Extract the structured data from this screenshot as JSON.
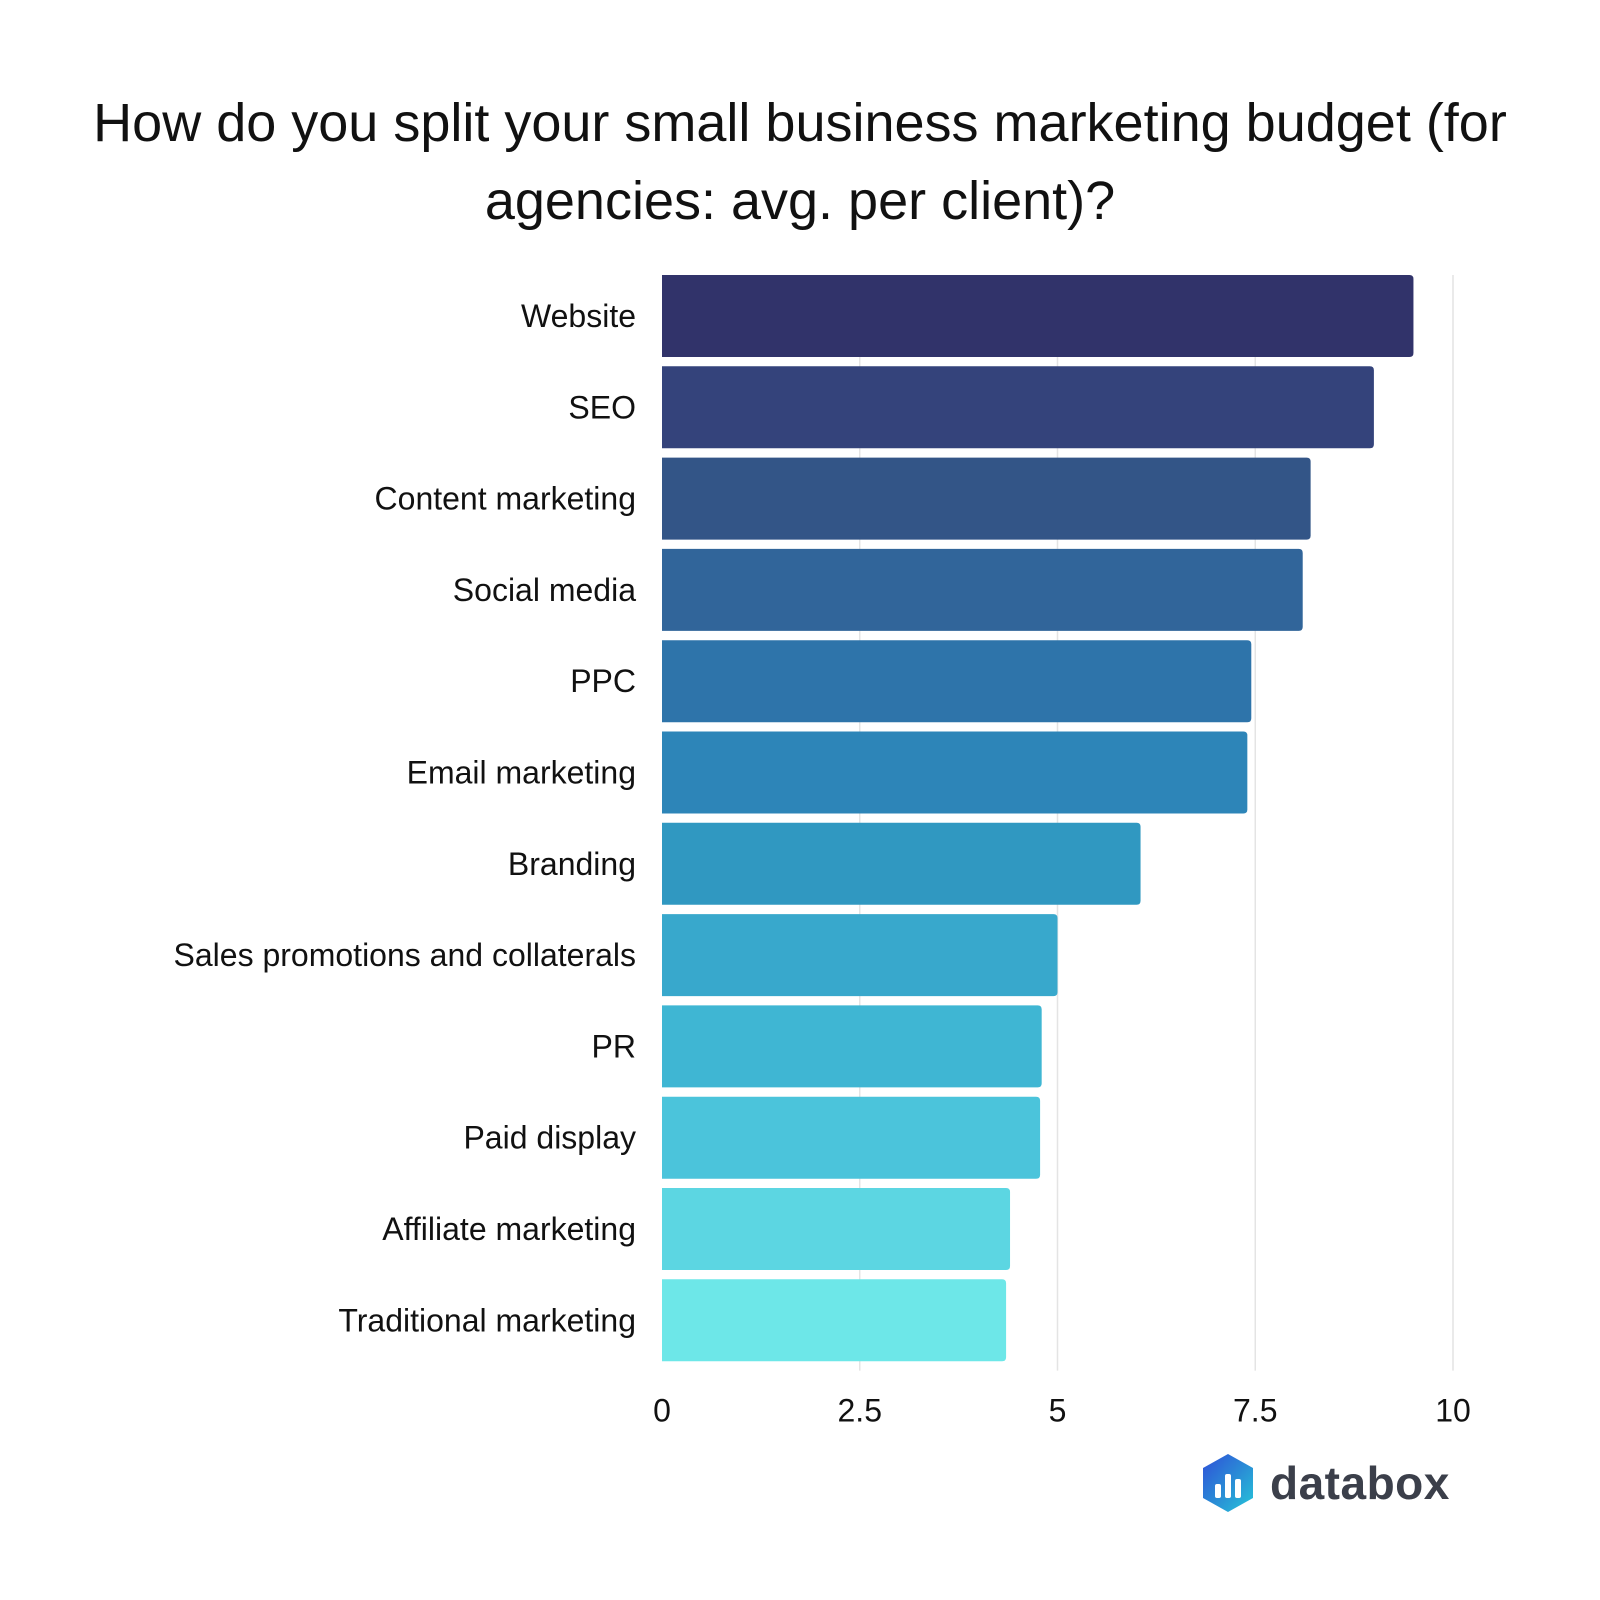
{
  "chart_data": {
    "type": "bar",
    "orientation": "horizontal",
    "title": "How do you split your small business marketing budget (for agencies: avg. per client)?",
    "categories": [
      "Website",
      "SEO",
      "Content marketing",
      "Social media",
      "PPC",
      "Email marketing",
      "Branding",
      "Sales promotions and collaterals",
      "PR",
      "Paid display",
      "Affiliate marketing",
      "Traditional marketing"
    ],
    "values": [
      9.5,
      9.0,
      8.2,
      8.1,
      7.45,
      7.4,
      6.05,
      5.0,
      4.8,
      4.78,
      4.4,
      4.35
    ],
    "colors": [
      "#31336a",
      "#34437b",
      "#335587",
      "#31659a",
      "#2e74aa",
      "#2d85b8",
      "#3098c1",
      "#38a8cc",
      "#3fb6d3",
      "#4bc4db",
      "#5cd6e2",
      "#6de7e8"
    ],
    "xlim": [
      0,
      10
    ],
    "xticks": [
      "0",
      "2.5",
      "5",
      "7.5",
      "10"
    ],
    "grid": true,
    "xlabel": "",
    "ylabel": ""
  },
  "brand": {
    "name": "databox",
    "logo_icon": "databox-hexagon-logo-icon"
  }
}
